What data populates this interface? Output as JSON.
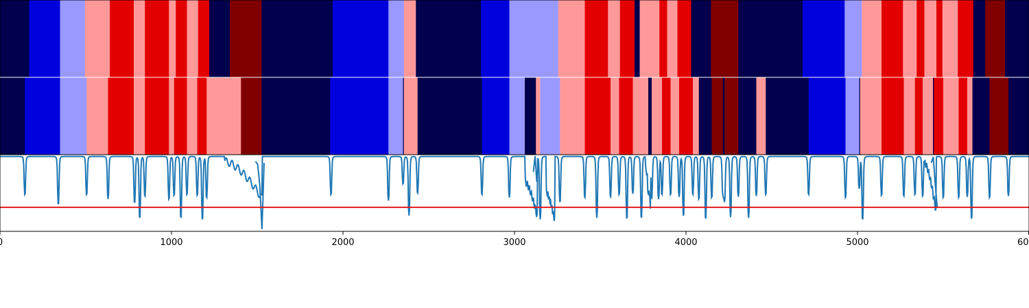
{
  "chart_data": {
    "type": "heatmap",
    "xlim": [
      0,
      6000
    ],
    "x_ticks": [
      {
        "value": 0,
        "label": "0"
      },
      {
        "value": 1000,
        "label": "1000"
      },
      {
        "value": 2000,
        "label": "2000"
      },
      {
        "value": 3000,
        "label": "3000"
      },
      {
        "value": 4000,
        "label": "4000"
      },
      {
        "value": 5000,
        "label": "5000"
      },
      {
        "value": 6000,
        "label": "6000"
      }
    ],
    "state_colors": {
      "0": "#00004c",
      "1": "#0000dd",
      "2": "#9999ff",
      "3": "#ff9999",
      "4": "#e30000",
      "5": "#800000"
    },
    "state_sequences": [
      {
        "segments": [
          [
            0,
            170,
            0
          ],
          [
            170,
            350,
            1
          ],
          [
            350,
            495,
            2
          ],
          [
            495,
            640,
            3
          ],
          [
            640,
            780,
            4
          ],
          [
            780,
            845,
            3
          ],
          [
            845,
            985,
            4
          ],
          [
            985,
            1025,
            3
          ],
          [
            1025,
            1090,
            4
          ],
          [
            1090,
            1155,
            3
          ],
          [
            1155,
            1220,
            4
          ],
          [
            1220,
            1340,
            0
          ],
          [
            1340,
            1525,
            5
          ],
          [
            1525,
            1940,
            0
          ],
          [
            1940,
            2265,
            1
          ],
          [
            2265,
            2355,
            2
          ],
          [
            2355,
            2425,
            3
          ],
          [
            2425,
            2805,
            0
          ],
          [
            2805,
            2970,
            1
          ],
          [
            2970,
            3255,
            2
          ],
          [
            3255,
            3410,
            3
          ],
          [
            3410,
            3545,
            4
          ],
          [
            3545,
            3615,
            3
          ],
          [
            3615,
            3700,
            4
          ],
          [
            3700,
            3730,
            0
          ],
          [
            3730,
            3845,
            3
          ],
          [
            3845,
            3890,
            4
          ],
          [
            3890,
            3950,
            3
          ],
          [
            3950,
            4030,
            4
          ],
          [
            4030,
            4145,
            0
          ],
          [
            4145,
            4305,
            5
          ],
          [
            4305,
            4680,
            0
          ],
          [
            4680,
            4925,
            1
          ],
          [
            4925,
            5025,
            2
          ],
          [
            5025,
            5140,
            3
          ],
          [
            5140,
            5265,
            4
          ],
          [
            5265,
            5345,
            3
          ],
          [
            5345,
            5390,
            4
          ],
          [
            5390,
            5460,
            3
          ],
          [
            5460,
            5495,
            4
          ],
          [
            5495,
            5585,
            3
          ],
          [
            5585,
            5675,
            4
          ],
          [
            5675,
            5745,
            0
          ],
          [
            5745,
            5860,
            5
          ],
          [
            5860,
            6000,
            0
          ]
        ]
      },
      {
        "segments": [
          [
            0,
            145,
            0
          ],
          [
            145,
            350,
            1
          ],
          [
            350,
            505,
            2
          ],
          [
            505,
            630,
            3
          ],
          [
            630,
            780,
            4
          ],
          [
            780,
            845,
            3
          ],
          [
            845,
            985,
            4
          ],
          [
            985,
            1015,
            3
          ],
          [
            1015,
            1090,
            4
          ],
          [
            1090,
            1150,
            3
          ],
          [
            1150,
            1205,
            4
          ],
          [
            1205,
            1405,
            3
          ],
          [
            1405,
            1525,
            5
          ],
          [
            1525,
            1925,
            0
          ],
          [
            1925,
            2265,
            1
          ],
          [
            2265,
            2350,
            2
          ],
          [
            2350,
            2355,
            0
          ],
          [
            2355,
            2435,
            3
          ],
          [
            2435,
            2810,
            0
          ],
          [
            2810,
            2970,
            1
          ],
          [
            2970,
            3060,
            2
          ],
          [
            3060,
            3125,
            0
          ],
          [
            3125,
            3150,
            3
          ],
          [
            3150,
            3265,
            2
          ],
          [
            3265,
            3410,
            3
          ],
          [
            3410,
            3560,
            4
          ],
          [
            3560,
            3610,
            3
          ],
          [
            3610,
            3690,
            4
          ],
          [
            3690,
            3780,
            3
          ],
          [
            3780,
            3800,
            0
          ],
          [
            3800,
            3860,
            3
          ],
          [
            3860,
            3910,
            4
          ],
          [
            3910,
            3960,
            3
          ],
          [
            3960,
            4040,
            4
          ],
          [
            4040,
            4075,
            3
          ],
          [
            4075,
            4150,
            0
          ],
          [
            4150,
            4215,
            5
          ],
          [
            4215,
            4225,
            0
          ],
          [
            4225,
            4305,
            5
          ],
          [
            4305,
            4410,
            0
          ],
          [
            4410,
            4465,
            3
          ],
          [
            4465,
            4715,
            0
          ],
          [
            4715,
            4930,
            1
          ],
          [
            4930,
            5010,
            2
          ],
          [
            5010,
            5015,
            0
          ],
          [
            5015,
            5140,
            3
          ],
          [
            5140,
            5270,
            4
          ],
          [
            5270,
            5335,
            3
          ],
          [
            5335,
            5380,
            4
          ],
          [
            5380,
            5440,
            3
          ],
          [
            5440,
            5445,
            0
          ],
          [
            5445,
            5500,
            4
          ],
          [
            5500,
            5590,
            3
          ],
          [
            5590,
            5640,
            4
          ],
          [
            5640,
            5670,
            3
          ],
          [
            5670,
            5770,
            0
          ],
          [
            5770,
            5880,
            5
          ],
          [
            5880,
            6000,
            0
          ]
        ]
      }
    ],
    "line_series": {
      "color": "#1f77b4",
      "ylim": [
        0,
        1
      ],
      "baseline": 0.985,
      "dips": [
        [
          145,
          0.48
        ],
        [
          340,
          0.35
        ],
        [
          505,
          0.48
        ],
        [
          630,
          0.42
        ],
        [
          785,
          0.37
        ],
        [
          815,
          0.17
        ],
        [
          845,
          0.46
        ],
        [
          985,
          0.42
        ],
        [
          1015,
          0.47
        ],
        [
          1055,
          0.17
        ],
        [
          1090,
          0.48
        ],
        [
          1150,
          0.47
        ],
        [
          1180,
          0.15
        ],
        [
          1205,
          0.44
        ],
        [
          1930,
          0.48
        ],
        [
          2265,
          0.4
        ],
        [
          2350,
          0.62
        ],
        [
          2385,
          0.2
        ],
        [
          2435,
          0.5
        ],
        [
          2810,
          0.48
        ],
        [
          2970,
          0.44
        ],
        [
          3125,
          0.62
        ],
        [
          3150,
          0.15
        ],
        [
          3265,
          0.38
        ],
        [
          3410,
          0.44
        ],
        [
          3480,
          0.17
        ],
        [
          3560,
          0.45
        ],
        [
          3610,
          0.48
        ],
        [
          3655,
          0.16
        ],
        [
          3690,
          0.49
        ],
        [
          3740,
          0.17
        ],
        [
          3780,
          0.48
        ],
        [
          3800,
          0.44
        ],
        [
          3840,
          0.42
        ],
        [
          3860,
          0.48
        ],
        [
          3910,
          0.48
        ],
        [
          3960,
          0.45
        ],
        [
          3985,
          0.2
        ],
        [
          4040,
          0.48
        ],
        [
          4075,
          0.42
        ],
        [
          4115,
          0.16
        ],
        [
          4150,
          0.44
        ],
        [
          4215,
          0.5
        ],
        [
          4225,
          0.42
        ],
        [
          4260,
          0.18
        ],
        [
          4305,
          0.45
        ],
        [
          4365,
          0.17
        ],
        [
          4410,
          0.46
        ],
        [
          4465,
          0.48
        ],
        [
          4715,
          0.48
        ],
        [
          4930,
          0.44
        ],
        [
          5010,
          0.56
        ],
        [
          5030,
          0.15
        ],
        [
          5140,
          0.47
        ],
        [
          5270,
          0.46
        ],
        [
          5335,
          0.48
        ],
        [
          5380,
          0.46
        ],
        [
          5445,
          0.52
        ],
        [
          5500,
          0.44
        ],
        [
          5590,
          0.44
        ],
        [
          5640,
          0.45
        ],
        [
          5665,
          0.16
        ],
        [
          5770,
          0.44
        ],
        [
          5880,
          0.46
        ]
      ],
      "troughs": [
        [
          1310,
          1530,
          0.42,
          0.92
        ],
        [
          3060,
          3135,
          0.16,
          0.65
        ],
        [
          3185,
          3235,
          0.12,
          0.5
        ],
        [
          3763,
          3795,
          0.26,
          0.82
        ],
        [
          5390,
          5460,
          0.22,
          0.9
        ]
      ],
      "annotations": [
        [
          1490,
          1540,
          [
            0.92,
            0.88,
            0.6,
            0.02,
            0.9
          ]
        ],
        [
          3110,
          3140,
          [
            0.78,
            0.99,
            0.65,
            0.88
          ]
        ],
        [
          5430,
          5465,
          [
            0.9,
            0.98,
            0.62,
            0.3
          ]
        ]
      ]
    },
    "threshold_line": {
      "value": 0.31,
      "color": "#e41a1c"
    }
  }
}
